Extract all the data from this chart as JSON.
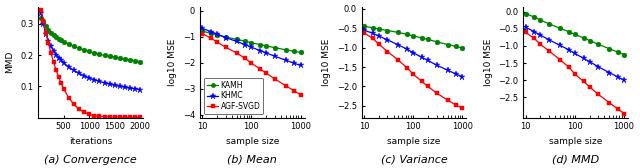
{
  "conv_iters": [
    50,
    100,
    150,
    200,
    250,
    300,
    350,
    400,
    450,
    500,
    600,
    700,
    800,
    900,
    1000,
    1100,
    1200,
    1300,
    1400,
    1500,
    1600,
    1700,
    1800,
    1900,
    2000
  ],
  "conv_kamh": [
    0.32,
    0.31,
    0.295,
    0.282,
    0.272,
    0.265,
    0.258,
    0.252,
    0.247,
    0.243,
    0.235,
    0.228,
    0.222,
    0.217,
    0.212,
    0.207,
    0.203,
    0.199,
    0.196,
    0.193,
    0.19,
    0.187,
    0.185,
    0.182,
    0.179
  ],
  "conv_khmc": [
    0.335,
    0.3,
    0.268,
    0.245,
    0.228,
    0.214,
    0.202,
    0.192,
    0.183,
    0.175,
    0.162,
    0.151,
    0.142,
    0.134,
    0.127,
    0.121,
    0.116,
    0.111,
    0.107,
    0.103,
    0.1,
    0.097,
    0.094,
    0.092,
    0.09
  ],
  "conv_agf": [
    0.345,
    0.31,
    0.272,
    0.238,
    0.207,
    0.178,
    0.153,
    0.13,
    0.11,
    0.092,
    0.063,
    0.042,
    0.027,
    0.017,
    0.01,
    0.006,
    0.004,
    0.003,
    0.002,
    0.002,
    0.002,
    0.001,
    0.001,
    0.001,
    0.001
  ],
  "sample_sizes": [
    10,
    15,
    20,
    30,
    50,
    75,
    100,
    150,
    200,
    300,
    500,
    750,
    1000
  ],
  "mean_kamh": [
    -0.78,
    -0.87,
    -0.93,
    -1.01,
    -1.1,
    -1.17,
    -1.23,
    -1.3,
    -1.35,
    -1.42,
    -1.5,
    -1.56,
    -1.6
  ],
  "mean_khmc": [
    -0.68,
    -0.8,
    -0.9,
    -1.03,
    -1.18,
    -1.3,
    -1.4,
    -1.53,
    -1.62,
    -1.75,
    -1.9,
    -2.02,
    -2.1
  ],
  "mean_agf": [
    -0.88,
    -1.05,
    -1.2,
    -1.4,
    -1.62,
    -1.83,
    -2.02,
    -2.23,
    -2.4,
    -2.62,
    -2.88,
    -3.08,
    -3.22
  ],
  "var_kamh": [
    -0.45,
    -0.49,
    -0.52,
    -0.56,
    -0.61,
    -0.66,
    -0.7,
    -0.75,
    -0.79,
    -0.85,
    -0.92,
    -0.97,
    -1.01
  ],
  "var_khmc": [
    -0.55,
    -0.63,
    -0.7,
    -0.8,
    -0.93,
    -1.04,
    -1.13,
    -1.25,
    -1.33,
    -1.45,
    -1.58,
    -1.68,
    -1.75
  ],
  "var_agf": [
    -0.62,
    -0.76,
    -0.91,
    -1.1,
    -1.32,
    -1.52,
    -1.68,
    -1.87,
    -2.0,
    -2.17,
    -2.35,
    -2.48,
    -2.55
  ],
  "mmd_kamh": [
    -0.05,
    -0.15,
    -0.24,
    -0.35,
    -0.48,
    -0.58,
    -0.66,
    -0.76,
    -0.84,
    -0.95,
    -1.08,
    -1.18,
    -1.25
  ],
  "mmd_khmc": [
    -0.45,
    -0.58,
    -0.68,
    -0.82,
    -0.98,
    -1.11,
    -1.22,
    -1.36,
    -1.46,
    -1.61,
    -1.78,
    -1.91,
    -2.0
  ],
  "mmd_agf": [
    -0.6,
    -0.78,
    -0.95,
    -1.15,
    -1.4,
    -1.62,
    -1.82,
    -2.04,
    -2.2,
    -2.42,
    -2.66,
    -2.85,
    -2.98
  ],
  "color_kamh": "#008000",
  "color_khmc": "#0000FF",
  "color_agf": "#FF0000",
  "title_a": "(a) Convergence",
  "title_b": "(b) Mean",
  "title_c": "(c) Variance",
  "title_d": "(d) MMD",
  "xlabel_a": "iterations",
  "xlabel_bcd": "sample size",
  "ylabel_a": "MMD",
  "ylabel_bcd": "log10 MSE"
}
